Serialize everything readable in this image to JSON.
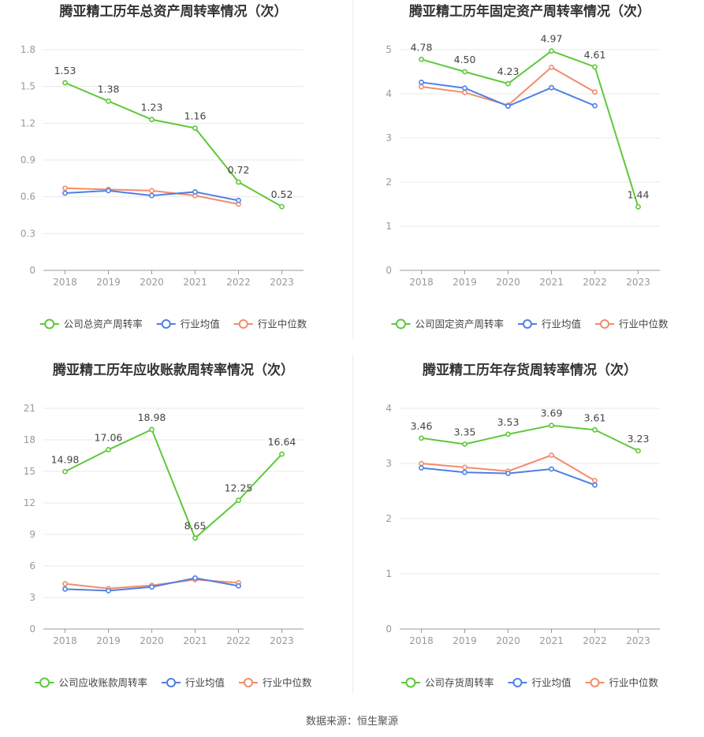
{
  "source": "数据来源：恒生聚源",
  "colors": {
    "company": "#5ec83b",
    "avg": "#4f7fe6",
    "median": "#f28c6b",
    "grid": "#e8e8e8",
    "axis": "#999999"
  },
  "chart_data": [
    {
      "type": "line",
      "title": "腾亚精工历年总资产周转率情况（次）",
      "categories": [
        "2018",
        "2019",
        "2020",
        "2021",
        "2022",
        "2023"
      ],
      "ylim": [
        0,
        1.8
      ],
      "yticks": [
        "0",
        "0.3",
        "0.6",
        "0.9",
        "1.2",
        "1.5",
        "1.8"
      ],
      "grid": true,
      "legend_position": "bottom",
      "series": [
        {
          "name": "公司总资产周转率",
          "values": [
            1.53,
            1.38,
            1.23,
            1.16,
            0.72,
            0.52
          ],
          "labels": [
            "1.53",
            "1.38",
            "1.23",
            "1.16",
            "0.72",
            "0.52"
          ]
        },
        {
          "name": "行业均值",
          "values": [
            0.63,
            0.65,
            0.61,
            0.64,
            0.57,
            null
          ]
        },
        {
          "name": "行业中位数",
          "values": [
            0.67,
            0.66,
            0.65,
            0.61,
            0.54,
            null
          ]
        }
      ]
    },
    {
      "type": "line",
      "title": "腾亚精工历年固定资产周转率情况（次）",
      "categories": [
        "2018",
        "2019",
        "2020",
        "2021",
        "2022",
        "2023"
      ],
      "ylim": [
        0,
        5
      ],
      "yticks": [
        "0",
        "1",
        "2",
        "3",
        "4",
        "5"
      ],
      "grid": true,
      "legend_position": "bottom",
      "series": [
        {
          "name": "公司固定资产周转率",
          "values": [
            4.78,
            4.5,
            4.23,
            4.97,
            4.61,
            1.44
          ],
          "labels": [
            "4.78",
            "4.50",
            "4.23",
            "4.97",
            "4.61",
            "1.44"
          ]
        },
        {
          "name": "行业均值",
          "values": [
            4.26,
            4.13,
            3.72,
            4.14,
            3.73,
            null
          ]
        },
        {
          "name": "行业中位数",
          "values": [
            4.16,
            4.03,
            3.74,
            4.6,
            4.04,
            null
          ]
        }
      ]
    },
    {
      "type": "line",
      "title": "腾亚精工历年应收账款周转率情况（次）",
      "categories": [
        "2018",
        "2019",
        "2020",
        "2021",
        "2022",
        "2023"
      ],
      "ylim": [
        0,
        21
      ],
      "yticks": [
        "0",
        "3",
        "6",
        "9",
        "12",
        "15",
        "18",
        "21"
      ],
      "grid": true,
      "legend_position": "bottom",
      "series": [
        {
          "name": "公司应收账款周转率",
          "values": [
            14.98,
            17.06,
            18.98,
            8.65,
            12.25,
            16.64
          ],
          "labels": [
            "14.98",
            "17.06",
            "18.98",
            "8.65",
            "12.25",
            "16.64"
          ]
        },
        {
          "name": "行业均值",
          "values": [
            3.8,
            3.65,
            4.0,
            4.85,
            4.1,
            null
          ]
        },
        {
          "name": "行业中位数",
          "values": [
            4.3,
            3.85,
            4.15,
            4.7,
            4.4,
            null
          ]
        }
      ]
    },
    {
      "type": "line",
      "title": "腾亚精工历年存货周转率情况（次）",
      "categories": [
        "2018",
        "2019",
        "2020",
        "2021",
        "2022",
        "2023"
      ],
      "ylim": [
        0,
        4
      ],
      "yticks": [
        "0",
        "1",
        "2",
        "3",
        "4"
      ],
      "grid": true,
      "legend_position": "bottom",
      "series": [
        {
          "name": "公司存货周转率",
          "values": [
            3.46,
            3.35,
            3.53,
            3.69,
            3.61,
            3.23
          ],
          "labels": [
            "3.46",
            "3.35",
            "3.53",
            "3.69",
            "3.61",
            "3.23"
          ]
        },
        {
          "name": "行业均值",
          "values": [
            2.92,
            2.84,
            2.82,
            2.9,
            2.61,
            null
          ]
        },
        {
          "name": "行业中位数",
          "values": [
            3.0,
            2.93,
            2.86,
            3.15,
            2.69,
            null
          ]
        }
      ]
    }
  ]
}
